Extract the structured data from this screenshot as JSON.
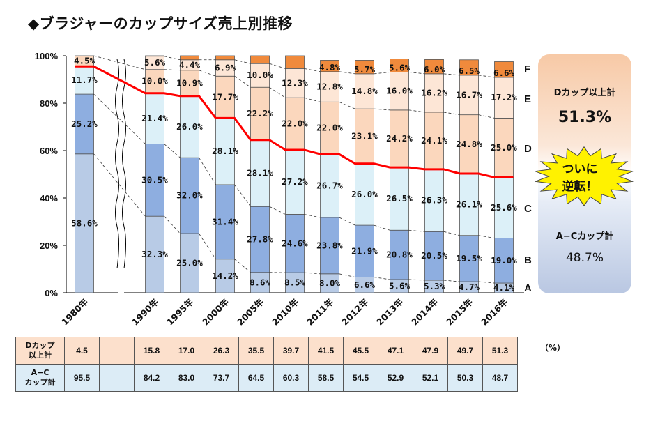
{
  "title": "◆ブラジャーのカップサイズ売上別推移",
  "chart_data": {
    "type": "bar",
    "stacked": true,
    "categories": [
      "1980年",
      "1990年",
      "1995年",
      "2000年",
      "2005年",
      "2010年",
      "2011年",
      "2012年",
      "2013年",
      "2014年",
      "2015年",
      "2016年"
    ],
    "ylim": [
      0,
      100
    ],
    "y_ticks": [
      "0%",
      "20%",
      "40%",
      "60%",
      "80%",
      "100%"
    ],
    "series": [
      {
        "name": "A",
        "color": "#b8cbe6",
        "values": [
          58.6,
          32.3,
          25.0,
          14.2,
          8.6,
          8.5,
          8.0,
          6.6,
          5.6,
          5.3,
          4.7,
          4.1
        ]
      },
      {
        "name": "B",
        "color": "#8eaee0",
        "values": [
          25.2,
          30.5,
          32.0,
          31.4,
          27.8,
          24.6,
          23.8,
          21.9,
          20.8,
          20.5,
          19.5,
          19.0
        ]
      },
      {
        "name": "C",
        "color": "#dcf0f8",
        "values": [
          11.7,
          21.4,
          26.0,
          28.1,
          28.1,
          27.2,
          26.7,
          26.0,
          26.5,
          26.3,
          26.1,
          25.6
        ]
      },
      {
        "name": "D",
        "color": "#fbd7bd",
        "values": [
          4.5,
          10.0,
          10.9,
          17.7,
          22.2,
          22.0,
          22.0,
          23.1,
          24.2,
          24.1,
          24.8,
          25.0
        ]
      },
      {
        "name": "E",
        "color": "#fde6d6",
        "values": [
          0,
          5.6,
          4.4,
          6.9,
          10.0,
          12.3,
          12.8,
          14.8,
          16.0,
          16.2,
          16.7,
          17.2
        ]
      },
      {
        "name": "F",
        "color": "#f08a3c",
        "values": [
          0,
          0.2,
          1.7,
          1.7,
          3.3,
          5.4,
          4.8,
          5.7,
          5.6,
          6.0,
          6.5,
          6.6
        ]
      }
    ],
    "labels": [
      [
        "58.6%",
        "25.2%",
        "11.7%",
        "4.5%"
      ],
      [
        "32.3%",
        "30.5%",
        "21.4%",
        "10.0%",
        "5.6%"
      ],
      [
        "25.0%",
        "32.0%",
        "26.0%",
        "10.9%",
        "4.4%"
      ],
      [
        "14.2%",
        "31.4%",
        "28.1%",
        "17.7%",
        "6.9%"
      ],
      [
        "8.6%",
        "27.8%",
        "28.1%",
        "22.2%",
        "10.0%"
      ],
      [
        "8.5%",
        "24.6%",
        "27.2%",
        "22.0%",
        "12.3%"
      ],
      [
        "8.0%",
        "23.8%",
        "26.7%",
        "22.0%",
        "12.8%",
        "4.8%"
      ],
      [
        "6.6%",
        "21.9%",
        "26.0%",
        "23.1%",
        "14.8%",
        "5.7%"
      ],
      [
        "5.6%",
        "20.8%",
        "26.5%",
        "24.2%",
        "16.0%",
        "5.6%"
      ],
      [
        "5.3%",
        "20.5%",
        "26.3%",
        "24.1%",
        "16.2%",
        "6.0%"
      ],
      [
        "4.7%",
        "19.5%",
        "26.1%",
        "24.8%",
        "16.7%",
        "6.5%"
      ],
      [
        "4.1%",
        "19.0%",
        "25.6%",
        "25.0%",
        "17.2%",
        "6.6%"
      ]
    ],
    "ac_total_line": [
      95.5,
      84.2,
      83.0,
      73.7,
      64.5,
      60.3,
      58.5,
      54.5,
      52.9,
      52.1,
      50.3,
      48.7
    ],
    "cup_letters": [
      "F",
      "E",
      "D",
      "C",
      "B",
      "A"
    ]
  },
  "side_panel": {
    "d_label": "Dカップ以上計",
    "d_value": "51.3%",
    "burst_line1": "ついに",
    "burst_line2": "逆転！",
    "ac_label": "A−Cカップ計",
    "ac_value": "48.7%"
  },
  "table": {
    "unit": "（%）",
    "rows": [
      {
        "head_line1": "Dカップ",
        "head_line2": "以上計",
        "values": [
          "4.5",
          "",
          "15.8",
          "17.0",
          "26.3",
          "35.5",
          "39.7",
          "41.5",
          "45.5",
          "47.1",
          "47.9",
          "49.7",
          "51.3"
        ]
      },
      {
        "head_line1": "A−C",
        "head_line2": "カップ計",
        "values": [
          "95.5",
          "",
          "84.2",
          "83.0",
          "73.7",
          "64.5",
          "60.3",
          "58.5",
          "54.5",
          "52.9",
          "52.1",
          "50.3",
          "48.7"
        ]
      }
    ]
  },
  "colors": {
    "line": "#ff0000",
    "grid": "#000000"
  }
}
